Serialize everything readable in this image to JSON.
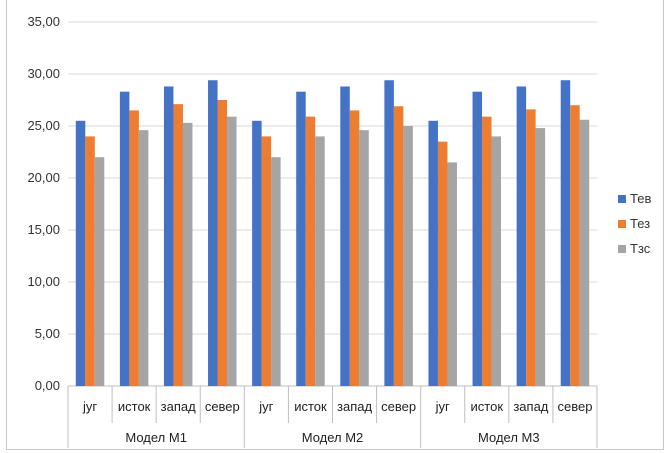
{
  "chart_data": {
    "type": "bar",
    "title": "",
    "xlabel": "",
    "ylabel": "",
    "ylim": [
      0,
      35
    ],
    "ytick_step": 5,
    "ytick_labels": [
      "0,00",
      "5,00",
      "10,00",
      "15,00",
      "20,00",
      "25,00",
      "30,00",
      "35,00"
    ],
    "grid": "horizontal",
    "legend_position": "right",
    "groups": [
      "Модел М1",
      "Модел М2",
      "Модел М3"
    ],
    "categories": [
      "југ",
      "исток",
      "запад",
      "север",
      "југ",
      "исток",
      "запад",
      "север",
      "југ",
      "исток",
      "запад",
      "север"
    ],
    "series": [
      {
        "name": "Тев",
        "color": "#4472C4",
        "values": [
          25.5,
          28.3,
          28.8,
          29.4,
          25.5,
          28.3,
          28.8,
          29.4,
          25.5,
          28.3,
          28.8,
          29.4
        ]
      },
      {
        "name": "Тез",
        "color": "#ED7D31",
        "values": [
          24.0,
          26.5,
          27.1,
          27.5,
          24.0,
          25.9,
          26.5,
          26.9,
          23.5,
          25.9,
          26.6,
          27.0
        ]
      },
      {
        "name": "Тзс",
        "color": "#A5A5A5",
        "values": [
          22.0,
          24.6,
          25.3,
          25.9,
          22.0,
          24.0,
          24.6,
          25.0,
          21.5,
          24.0,
          24.8,
          25.6
        ]
      }
    ]
  }
}
